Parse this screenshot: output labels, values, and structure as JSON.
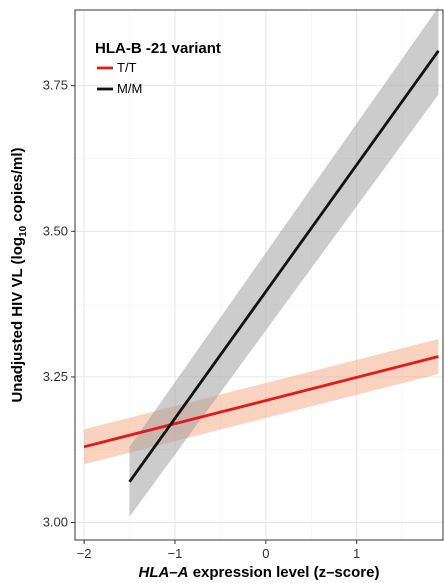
{
  "chart_data": {
    "type": "line",
    "title": "",
    "xlabel": {
      "italic_part": "HLA–A",
      "rest": " expression level (z–score)"
    },
    "ylabel": {
      "main": "Unadjusted HIV VL (log",
      "subscript": "10",
      "rest": " copies/ml)"
    },
    "xlim": [
      -2.1,
      1.95
    ],
    "ylim": [
      2.97,
      3.88
    ],
    "x_ticks": [
      -2,
      -1,
      0,
      1,
      2
    ],
    "x_tick_labels": [
      "−2",
      "−1",
      "0",
      "1",
      "2"
    ],
    "y_ticks": [
      3.0,
      3.25,
      3.5,
      3.75
    ],
    "y_tick_labels": [
      "3.00",
      "3.25",
      "3.50",
      "3.75"
    ],
    "grid": true,
    "legend": {
      "title": "HLA-B -21 variant",
      "placement": "top-left",
      "entries": [
        "T/T",
        "M/M"
      ]
    },
    "series": [
      {
        "name": "T/T",
        "color": "#e31a1c",
        "band_color": "#f4a582",
        "x": [
          -2.0,
          1.9
        ],
        "y": [
          3.13,
          3.285
        ],
        "ci_lower": [
          3.1,
          3.255
        ],
        "ci_upper": [
          3.16,
          3.315
        ]
      },
      {
        "name": "M/M",
        "color": "#111111",
        "band_color": "#999999",
        "x": [
          -1.5,
          1.9
        ],
        "y": [
          3.07,
          3.81
        ],
        "ci_lower": [
          3.01,
          3.735
        ],
        "ci_upper": [
          3.13,
          3.885
        ]
      }
    ]
  }
}
